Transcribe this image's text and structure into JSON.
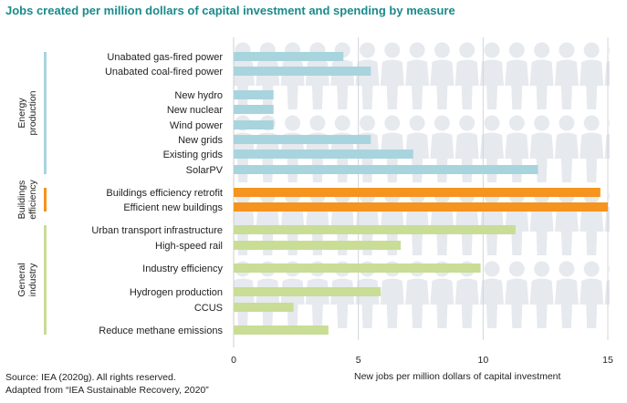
{
  "title": "Jobs created per million dollars of capital investment and spending by measure",
  "footer": {
    "line1": "Source: IEA (2020g). All rights reserved.",
    "line2": "Adapted from “IEA Sustainable Recovery, 2020”"
  },
  "chart_data": {
    "type": "bar",
    "orientation": "horizontal",
    "title": "Jobs created per million dollars of capital investment and spending by measure",
    "xlabel": "New jobs per million dollars of capital investment",
    "xlim": [
      0,
      15
    ],
    "xticks": [
      0,
      5,
      10,
      15
    ],
    "grid": true,
    "groups": [
      {
        "name": "Energy production",
        "label_lines": [
          "Energy",
          "production"
        ],
        "color": "#a8d4de"
      },
      {
        "name": "Buildings efficiency",
        "label_lines": [
          "Buildings",
          "efficiency"
        ],
        "color": "#f5941e"
      },
      {
        "name": "General industry",
        "label_lines": [
          "General",
          "industry"
        ],
        "color": "#c9dd96"
      }
    ],
    "bars": [
      {
        "label": "Unabated gas-fired power",
        "value": 4.4,
        "group": 0
      },
      {
        "label": "Unabated coal-fired power",
        "value": 5.5,
        "group": 0
      },
      {
        "label": "New hydro",
        "value": 1.6,
        "group": 0
      },
      {
        "label": "New nuclear",
        "value": 1.6,
        "group": 0
      },
      {
        "label": "Wind power",
        "value": 1.6,
        "group": 0
      },
      {
        "label": "New grids",
        "value": 5.5,
        "group": 0
      },
      {
        "label": "Existing grids",
        "value": 7.2,
        "group": 0
      },
      {
        "label": "SolarPV",
        "value": 12.2,
        "group": 0
      },
      {
        "label": "Buildings efficiency retrofit",
        "value": 14.7,
        "group": 1
      },
      {
        "label": "Efficient new buildings",
        "value": 15.0,
        "group": 1
      },
      {
        "label": "Urban transport infrastructure",
        "value": 11.3,
        "group": 2
      },
      {
        "label": "High-speed rail",
        "value": 6.7,
        "group": 2
      },
      {
        "label": "Industry efficiency",
        "value": 9.9,
        "group": 2
      },
      {
        "label": "Hydrogen production",
        "value": 5.9,
        "group": 2
      },
      {
        "label": "CCUS",
        "value": 2.4,
        "group": 2
      },
      {
        "label": "Reduce methane emissions",
        "value": 3.8,
        "group": 2
      }
    ]
  }
}
